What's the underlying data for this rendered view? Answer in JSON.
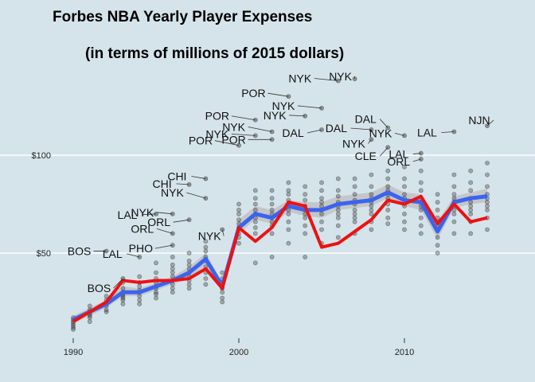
{
  "chart_data": {
    "type": "scatter",
    "title": "Forbes NBA Yearly Player Expenses",
    "subtitle": "(in terms of millions of 2015 dollars)",
    "xlabel": "",
    "ylabel": "",
    "xlim": [
      1989.5,
      2017.5
    ],
    "ylim": [
      10,
      140
    ],
    "x_ticks": [
      1990,
      2000,
      2010
    ],
    "x_tick_labels": [
      "1990",
      "2000",
      "2010"
    ],
    "y_ticks": [
      50,
      100
    ],
    "y_tick_labels": [
      "$50",
      "$100"
    ],
    "grid": "horizontal major lines at y ticks",
    "legend": "none",
    "colors": {
      "background": "#d5e4eb",
      "gridline": "#ffffff",
      "points": "#333333",
      "mean_line": "#3a64f0",
      "ribbon": "#bdbdbd",
      "median_line": "#ee1111"
    },
    "series": [
      {
        "kind": "mean_line_with_ci",
        "x": [
          1990,
          1991,
          1992,
          1993,
          1994,
          1995,
          1996,
          1997,
          1998,
          1999,
          2000,
          2001,
          2002,
          2003,
          2004,
          2005,
          2006,
          2007,
          2008,
          2009,
          2010,
          2011,
          2012,
          2013,
          2014,
          2015
        ],
        "y": [
          16,
          20,
          24,
          30,
          30,
          33,
          36,
          40,
          47,
          33,
          63,
          70,
          68,
          74,
          72,
          72,
          75,
          76,
          77,
          81,
          77,
          76,
          61,
          76,
          78,
          79
        ],
        "ci_lower": [
          14,
          18,
          22,
          28,
          28,
          31,
          34,
          37,
          44,
          31,
          60,
          67,
          65,
          71,
          69,
          68,
          72,
          73,
          74,
          78,
          74,
          72,
          57,
          73,
          75,
          76
        ],
        "ci_upper": [
          18,
          22,
          26,
          33,
          32,
          35,
          38,
          43,
          50,
          35,
          67,
          74,
          72,
          77,
          76,
          76,
          79,
          80,
          81,
          85,
          81,
          80,
          66,
          79,
          81,
          83
        ]
      },
      {
        "kind": "median_line",
        "x": [
          1990,
          1991,
          1992,
          1993,
          1994,
          1995,
          1996,
          1997,
          1998,
          1999,
          2000,
          2001,
          2002,
          2003,
          2004,
          2005,
          2006,
          2007,
          2008,
          2009,
          2010,
          2011,
          2012,
          2013,
          2014,
          2015
        ],
        "y": [
          15,
          20,
          25,
          36,
          35,
          36,
          36,
          37,
          42,
          32,
          63,
          56,
          63,
          76,
          74,
          53,
          55,
          61,
          67,
          77,
          75,
          79,
          65,
          75,
          66,
          68
        ]
      },
      {
        "kind": "team_points",
        "x": [
          1990,
          1990,
          1990,
          1990,
          1990,
          1990,
          1990,
          1991,
          1991,
          1991,
          1991,
          1991,
          1991,
          1991,
          1992,
          1992,
          1992,
          1992,
          1992,
          1992,
          1993,
          1993,
          1993,
          1993,
          1993,
          1993,
          1993,
          1993,
          1994,
          1994,
          1994,
          1994,
          1994,
          1994,
          1994,
          1994,
          1995,
          1995,
          1995,
          1995,
          1995,
          1995,
          1995,
          1995,
          1995,
          1996,
          1996,
          1996,
          1996,
          1996,
          1996,
          1996,
          1996,
          1996,
          1997,
          1997,
          1997,
          1997,
          1997,
          1997,
          1997,
          1997,
          1997,
          1998,
          1998,
          1998,
          1998,
          1998,
          1998,
          1998,
          1998,
          1998,
          1999,
          1999,
          1999,
          1999,
          1999,
          1999,
          1999,
          1999,
          2000,
          2000,
          2000,
          2000,
          2000,
          2000,
          2000,
          2000,
          2000,
          2001,
          2001,
          2001,
          2001,
          2001,
          2001,
          2001,
          2001,
          2001,
          2001,
          2002,
          2002,
          2002,
          2002,
          2002,
          2002,
          2002,
          2002,
          2002,
          2002,
          2003,
          2003,
          2003,
          2003,
          2003,
          2003,
          2003,
          2003,
          2003,
          2003,
          2004,
          2004,
          2004,
          2004,
          2004,
          2004,
          2004,
          2004,
          2004,
          2004,
          2005,
          2005,
          2005,
          2005,
          2005,
          2005,
          2005,
          2005,
          2005,
          2005,
          2006,
          2006,
          2006,
          2006,
          2006,
          2006,
          2006,
          2006,
          2006,
          2006,
          2007,
          2007,
          2007,
          2007,
          2007,
          2007,
          2007,
          2007,
          2007,
          2007,
          2008,
          2008,
          2008,
          2008,
          2008,
          2008,
          2008,
          2008,
          2008,
          2008,
          2009,
          2009,
          2009,
          2009,
          2009,
          2009,
          2009,
          2009,
          2009,
          2009,
          2010,
          2010,
          2010,
          2010,
          2010,
          2010,
          2010,
          2010,
          2010,
          2010,
          2011,
          2011,
          2011,
          2011,
          2011,
          2011,
          2011,
          2011,
          2011,
          2011,
          2012,
          2012,
          2012,
          2012,
          2012,
          2012,
          2012,
          2012,
          2012,
          2012,
          2013,
          2013,
          2013,
          2013,
          2013,
          2013,
          2013,
          2013,
          2013,
          2013,
          2014,
          2014,
          2014,
          2014,
          2014,
          2014,
          2014,
          2014,
          2014,
          2014,
          2015,
          2015,
          2015,
          2015,
          2015,
          2015,
          2015,
          2015,
          2015,
          2015
        ],
        "y": [
          11,
          12,
          13,
          14,
          15,
          16,
          17,
          15,
          17,
          18,
          19,
          20,
          21,
          23,
          20,
          21,
          23,
          24,
          26,
          28,
          24,
          26,
          27,
          28,
          29,
          30,
          32,
          35,
          24,
          26,
          28,
          30,
          31,
          33,
          35,
          38,
          27,
          29,
          30,
          32,
          33,
          35,
          37,
          40,
          45,
          30,
          32,
          34,
          36,
          38,
          40,
          42,
          44,
          48,
          32,
          34,
          36,
          38,
          40,
          42,
          44,
          46,
          50,
          34,
          37,
          40,
          43,
          46,
          48,
          51,
          53,
          56,
          25,
          27,
          30,
          32,
          33,
          35,
          37,
          40,
          55,
          58,
          60,
          63,
          65,
          67,
          70,
          72,
          75,
          45,
          60,
          63,
          66,
          68,
          70,
          72,
          75,
          78,
          82,
          48,
          60,
          64,
          66,
          68,
          70,
          72,
          75,
          78,
          82,
          55,
          62,
          66,
          70,
          72,
          75,
          77,
          80,
          82,
          86,
          48,
          60,
          64,
          68,
          70,
          72,
          74,
          77,
          80,
          84,
          55,
          62,
          66,
          70,
          72,
          74,
          76,
          78,
          82,
          86,
          58,
          64,
          68,
          70,
          72,
          74,
          76,
          79,
          82,
          88,
          60,
          66,
          68,
          70,
          72,
          75,
          77,
          80,
          84,
          88,
          62,
          66,
          70,
          72,
          74,
          76,
          78,
          80,
          84,
          90,
          65,
          68,
          72,
          75,
          78,
          80,
          82,
          84,
          88,
          92,
          62,
          66,
          70,
          74,
          76,
          78,
          80,
          84,
          88,
          94,
          60,
          64,
          68,
          72,
          74,
          76,
          78,
          82,
          86,
          92,
          50,
          54,
          58,
          62,
          64,
          66,
          68,
          72,
          76,
          80,
          60,
          66,
          70,
          72,
          74,
          76,
          78,
          80,
          84,
          90,
          60,
          66,
          70,
          72,
          74,
          76,
          78,
          82,
          86,
          92,
          62,
          68,
          72,
          74,
          76,
          78,
          80,
          84,
          90,
          96
        ]
      },
      {
        "kind": "labelled_outliers",
        "points": [
          {
            "team": "BOS",
            "x": 1992,
            "y": 51
          },
          {
            "team": "BOS",
            "x": 1993,
            "y": 37
          },
          {
            "team": "LAL",
            "x": 1994,
            "y": 48
          },
          {
            "team": "LAL",
            "x": 1995,
            "y": 70
          },
          {
            "team": "NYK",
            "x": 1996,
            "y": 70
          },
          {
            "team": "PHO",
            "x": 1996,
            "y": 54
          },
          {
            "team": "ORL",
            "x": 1996,
            "y": 60
          },
          {
            "team": "CHI",
            "x": 1997,
            "y": 85
          },
          {
            "team": "ORL",
            "x": 1997,
            "y": 67
          },
          {
            "team": "CHI",
            "x": 1998,
            "y": 88
          },
          {
            "team": "NYK",
            "x": 1998,
            "y": 78
          },
          {
            "team": "NYK",
            "x": 1999,
            "y": 62
          },
          {
            "team": "POR",
            "x": 2000,
            "y": 105
          },
          {
            "team": "POR",
            "x": 2001,
            "y": 118
          },
          {
            "team": "NYK",
            "x": 2001,
            "y": 110
          },
          {
            "team": "NYK",
            "x": 2002,
            "y": 112
          },
          {
            "team": "POR",
            "x": 2002,
            "y": 108
          },
          {
            "team": "POR",
            "x": 2003,
            "y": 130
          },
          {
            "team": "NYK",
            "x": 2004,
            "y": 120
          },
          {
            "team": "DAL",
            "x": 2005,
            "y": 113
          },
          {
            "team": "NYK",
            "x": 2005,
            "y": 124
          },
          {
            "team": "NYK",
            "x": 2006,
            "y": 138
          },
          {
            "team": "NYK",
            "x": 2007,
            "y": 139
          },
          {
            "team": "DAL",
            "x": 2008,
            "y": 113
          },
          {
            "team": "NYK",
            "x": 2008,
            "y": 108
          },
          {
            "team": "DAL",
            "x": 2009,
            "y": 114
          },
          {
            "team": "CLE",
            "x": 2009,
            "y": 104
          },
          {
            "team": "NYK",
            "x": 2010,
            "y": 110
          },
          {
            "team": "LAL",
            "x": 2011,
            "y": 101
          },
          {
            "team": "ORL",
            "x": 2011,
            "y": 98
          },
          {
            "team": "LAL",
            "x": 2013,
            "y": 112
          },
          {
            "team": "NJN",
            "x": 2015,
            "y": 115
          }
        ]
      }
    ]
  }
}
